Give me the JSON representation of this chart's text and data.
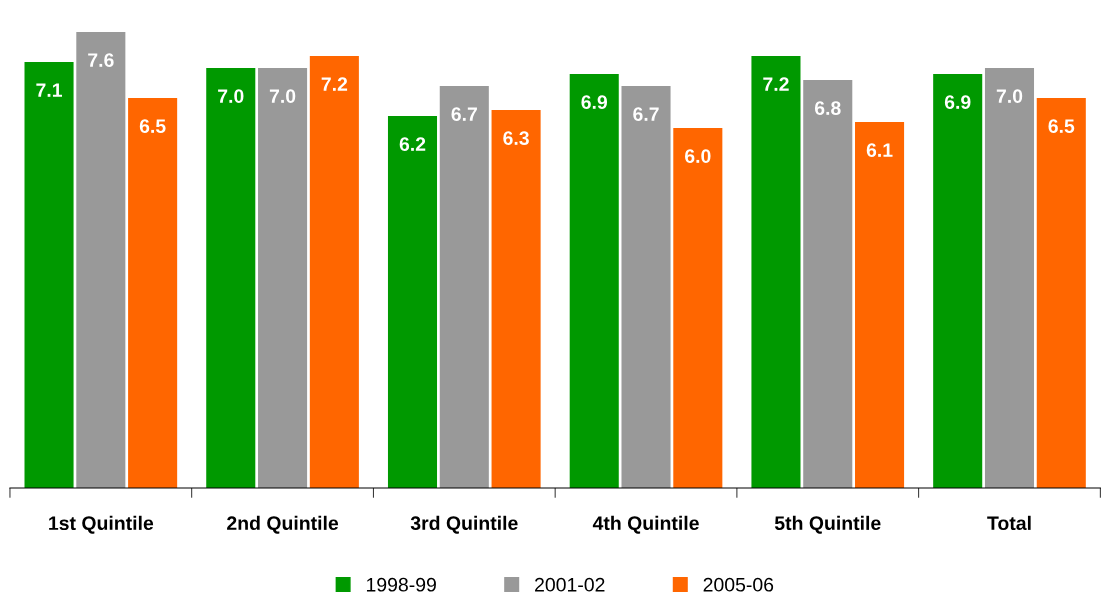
{
  "chart_data": {
    "type": "bar",
    "categories": [
      "1st Quintile",
      "2nd Quintile",
      "3rd Quintile",
      "4th Quintile",
      "5th Quintile",
      "Total"
    ],
    "series": [
      {
        "name": "1998-99",
        "color": "#009900",
        "values": [
          7.1,
          7.0,
          6.2,
          6.9,
          7.2,
          6.9
        ],
        "value_labels": [
          "7.1",
          "7.0",
          "6.2",
          "6.9",
          "7.2",
          "6.9"
        ]
      },
      {
        "name": "2001-02",
        "color": "#999999",
        "values": [
          7.6,
          7.0,
          6.7,
          6.7,
          6.8,
          7.0
        ],
        "value_labels": [
          "7.6",
          "7.0",
          "6.7",
          "6.7",
          "6.8",
          "7.0"
        ]
      },
      {
        "name": "2005-06",
        "color": "#ff6600",
        "values": [
          6.5,
          7.2,
          6.3,
          6.0,
          6.1,
          6.5
        ],
        "value_labels": [
          "6.5",
          "7.2",
          "6.3",
          "6.0",
          "6.1",
          "6.5"
        ]
      }
    ],
    "tick_labels": "x",
    "grid": false,
    "legend": "bottom"
  }
}
